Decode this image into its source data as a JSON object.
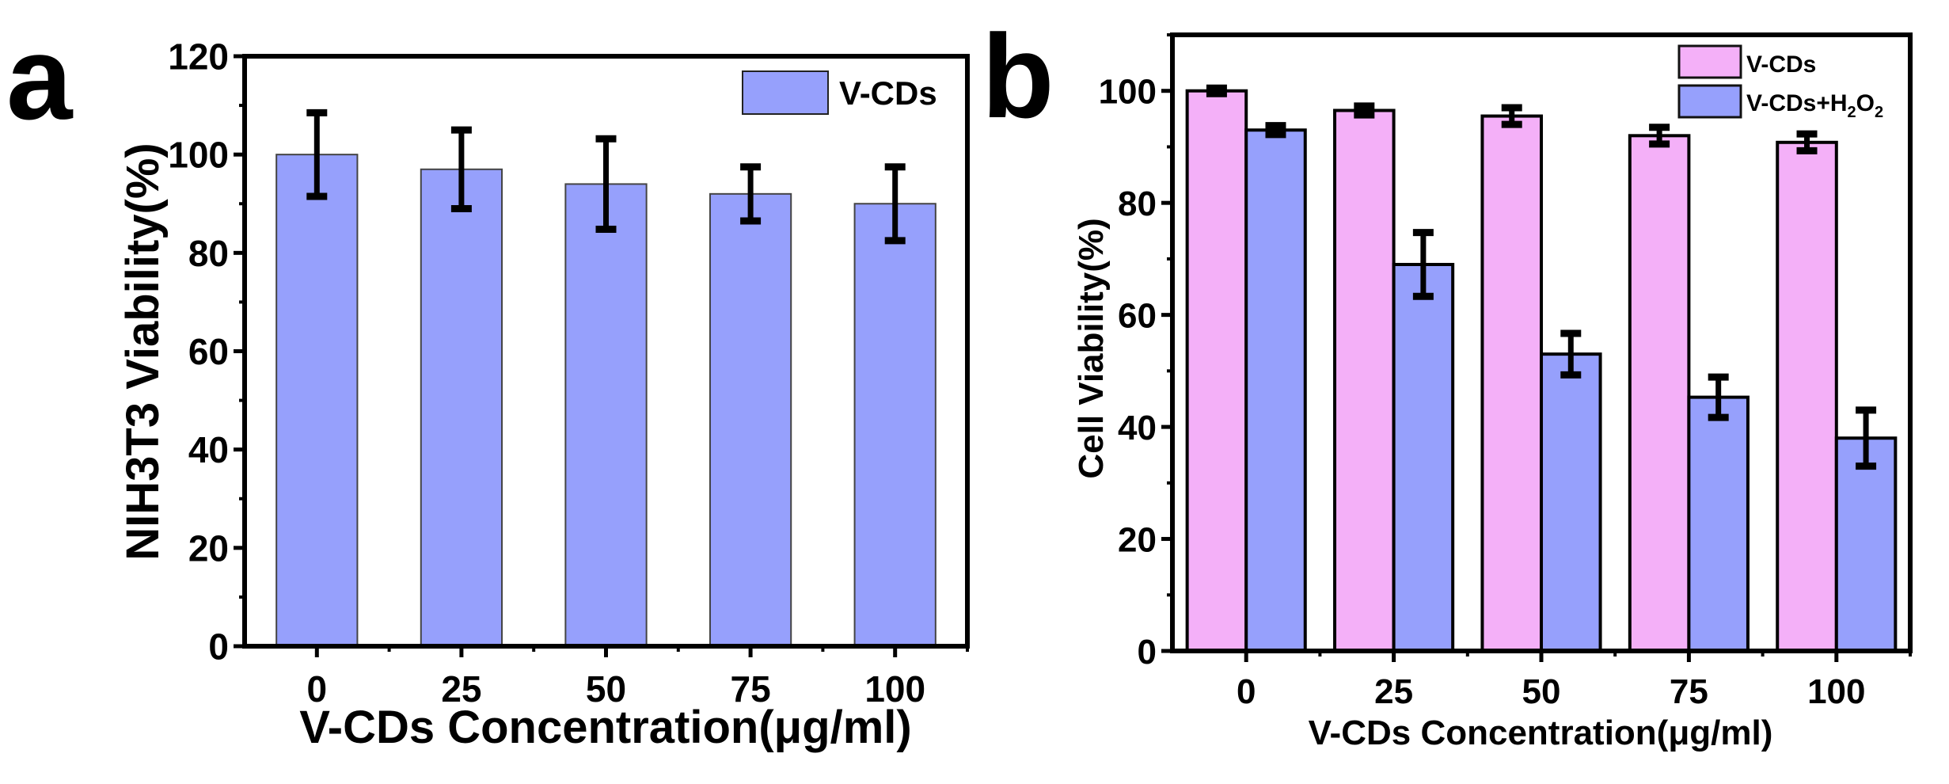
{
  "chart_data": [
    {
      "panel_label": "a",
      "type": "bar",
      "title": "",
      "xlabel": "V-CDs Concentration(μg/ml)",
      "ylabel": "NIH3T3 Viability(%)",
      "categories": [
        "0",
        "25",
        "50",
        "75",
        "100"
      ],
      "ylim": [
        0,
        120
      ],
      "yticks": [
        "0",
        "20",
        "40",
        "60",
        "80",
        "100",
        "120"
      ],
      "grid": false,
      "legend_position": "top-right",
      "series": [
        {
          "name": "V-CDs",
          "color": "#96a0fc",
          "values": [
            100,
            97,
            94,
            92,
            90
          ],
          "errors": [
            8.5,
            8,
            9.2,
            5.5,
            7.5
          ]
        }
      ]
    },
    {
      "panel_label": "b",
      "type": "bar",
      "title": "",
      "xlabel": "V-CDs Concentration(μg/ml)",
      "ylabel": "Cell Viability(%)",
      "categories": [
        "0",
        "25",
        "50",
        "75",
        "100"
      ],
      "ylim": [
        0,
        110
      ],
      "yticks": [
        "0",
        "20",
        "40",
        "60",
        "80",
        "100"
      ],
      "grid": false,
      "legend_position": "top-right",
      "series": [
        {
          "name": "V-CDs",
          "color": "#f4b0f8",
          "values": [
            100,
            96.5,
            95.5,
            92,
            90.8
          ],
          "errors": [
            0.5,
            0.8,
            1.5,
            1.5,
            1.5
          ]
        },
        {
          "name": "V-CDs+H2O2",
          "legend_main": "V-CDs+H",
          "legend_sub1": "2",
          "legend_mid": "O",
          "legend_sub2": "2",
          "color": "#96a0fc",
          "values": [
            93,
            69,
            53,
            45.3,
            38
          ],
          "errors": [
            0.8,
            5.7,
            3.7,
            3.6,
            5
          ]
        }
      ]
    }
  ]
}
